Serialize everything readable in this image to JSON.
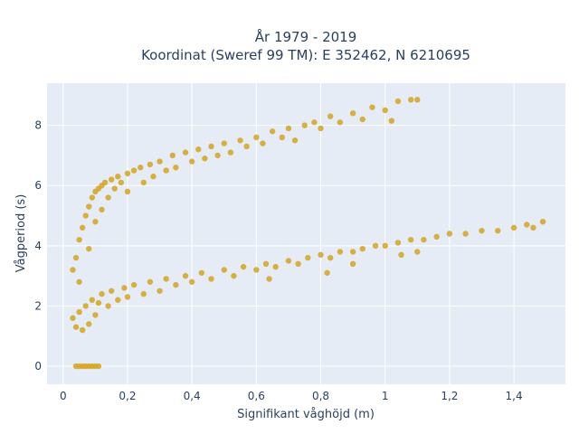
{
  "chart_data": {
    "type": "scatter",
    "title_line1": "År 1979 - 2019",
    "title_line2": "Koordinat (Sweref 99 TM): E 352462, N 6210695",
    "xlabel": "Signifikant våghöjd (m)",
    "ylabel": "Vågperiod (s)",
    "xlim": [
      -0.05,
      1.56
    ],
    "ylim": [
      -0.6,
      9.4
    ],
    "xticks": [
      0,
      0.2,
      0.4,
      0.6,
      0.8,
      1.0,
      1.2,
      1.4
    ],
    "xtick_labels": [
      "0",
      "0,2",
      "0,4",
      "0,6",
      "0,8",
      "1",
      "1,2",
      "1,4"
    ],
    "yticks": [
      0,
      2,
      4,
      6,
      8
    ],
    "ytick_labels": [
      "0",
      "2",
      "4",
      "6",
      "8"
    ],
    "grid": true,
    "legend": "none",
    "background_color": "#e5ecf6",
    "grid_color": "#ffffff",
    "marker_color": "#d4a520",
    "series": [
      {
        "description": "upper branch (swell)",
        "points": [
          [
            0.03,
            3.2
          ],
          [
            0.04,
            3.6
          ],
          [
            0.05,
            4.2
          ],
          [
            0.05,
            2.8
          ],
          [
            0.06,
            4.6
          ],
          [
            0.07,
            5.0
          ],
          [
            0.08,
            5.3
          ],
          [
            0.08,
            3.9
          ],
          [
            0.09,
            5.6
          ],
          [
            0.1,
            5.8
          ],
          [
            0.1,
            4.8
          ],
          [
            0.11,
            5.9
          ],
          [
            0.12,
            6.0
          ],
          [
            0.12,
            5.2
          ],
          [
            0.13,
            6.1
          ],
          [
            0.14,
            5.6
          ],
          [
            0.15,
            6.2
          ],
          [
            0.16,
            5.9
          ],
          [
            0.17,
            6.3
          ],
          [
            0.18,
            6.1
          ],
          [
            0.2,
            6.4
          ],
          [
            0.2,
            5.8
          ],
          [
            0.22,
            6.5
          ],
          [
            0.24,
            6.6
          ],
          [
            0.25,
            6.1
          ],
          [
            0.27,
            6.7
          ],
          [
            0.28,
            6.3
          ],
          [
            0.3,
            6.8
          ],
          [
            0.32,
            6.5
          ],
          [
            0.34,
            7.0
          ],
          [
            0.35,
            6.6
          ],
          [
            0.38,
            7.1
          ],
          [
            0.4,
            6.8
          ],
          [
            0.42,
            7.2
          ],
          [
            0.44,
            6.9
          ],
          [
            0.46,
            7.3
          ],
          [
            0.48,
            7.0
          ],
          [
            0.5,
            7.4
          ],
          [
            0.52,
            7.1
          ],
          [
            0.55,
            7.5
          ],
          [
            0.57,
            7.3
          ],
          [
            0.6,
            7.6
          ],
          [
            0.62,
            7.4
          ],
          [
            0.65,
            7.8
          ],
          [
            0.68,
            7.6
          ],
          [
            0.7,
            7.9
          ],
          [
            0.72,
            7.5
          ],
          [
            0.75,
            8.0
          ],
          [
            0.78,
            8.1
          ],
          [
            0.8,
            7.9
          ],
          [
            0.83,
            8.3
          ],
          [
            0.86,
            8.1
          ],
          [
            0.9,
            8.4
          ],
          [
            0.93,
            8.2
          ],
          [
            0.96,
            8.6
          ],
          [
            1.0,
            8.5
          ],
          [
            1.04,
            8.8
          ],
          [
            1.08,
            8.85
          ],
          [
            1.1,
            8.85
          ],
          [
            1.02,
            8.15
          ]
        ]
      },
      {
        "description": "lower branch (wind waves)",
        "points": [
          [
            0.03,
            1.6
          ],
          [
            0.04,
            1.3
          ],
          [
            0.05,
            1.8
          ],
          [
            0.06,
            1.2
          ],
          [
            0.07,
            2.0
          ],
          [
            0.08,
            1.4
          ],
          [
            0.09,
            2.2
          ],
          [
            0.1,
            1.7
          ],
          [
            0.11,
            2.1
          ],
          [
            0.12,
            2.4
          ],
          [
            0.14,
            2.0
          ],
          [
            0.15,
            2.5
          ],
          [
            0.17,
            2.2
          ],
          [
            0.19,
            2.6
          ],
          [
            0.2,
            2.3
          ],
          [
            0.22,
            2.7
          ],
          [
            0.25,
            2.4
          ],
          [
            0.27,
            2.8
          ],
          [
            0.3,
            2.5
          ],
          [
            0.32,
            2.9
          ],
          [
            0.35,
            2.7
          ],
          [
            0.38,
            3.0
          ],
          [
            0.4,
            2.8
          ],
          [
            0.43,
            3.1
          ],
          [
            0.46,
            2.9
          ],
          [
            0.5,
            3.2
          ],
          [
            0.53,
            3.0
          ],
          [
            0.56,
            3.3
          ],
          [
            0.6,
            3.2
          ],
          [
            0.63,
            3.4
          ],
          [
            0.66,
            3.3
          ],
          [
            0.7,
            3.5
          ],
          [
            0.73,
            3.4
          ],
          [
            0.76,
            3.6
          ],
          [
            0.8,
            3.7
          ],
          [
            0.83,
            3.6
          ],
          [
            0.86,
            3.8
          ],
          [
            0.9,
            3.8
          ],
          [
            0.93,
            3.9
          ],
          [
            0.97,
            4.0
          ],
          [
            1.0,
            4.0
          ],
          [
            1.04,
            4.1
          ],
          [
            1.08,
            4.2
          ],
          [
            1.12,
            4.2
          ],
          [
            1.16,
            4.3
          ],
          [
            1.2,
            4.4
          ],
          [
            1.25,
            4.4
          ],
          [
            1.3,
            4.5
          ],
          [
            1.35,
            4.5
          ],
          [
            1.4,
            4.6
          ],
          [
            1.44,
            4.7
          ],
          [
            1.49,
            4.8
          ],
          [
            1.46,
            4.6
          ],
          [
            0.82,
            3.1
          ],
          [
            0.9,
            3.4
          ],
          [
            1.05,
            3.7
          ],
          [
            1.1,
            3.8
          ],
          [
            0.64,
            2.9
          ]
        ]
      },
      {
        "description": "zero-period row",
        "points": [
          [
            0.04,
            0
          ],
          [
            0.05,
            0
          ],
          [
            0.06,
            0
          ],
          [
            0.07,
            0
          ],
          [
            0.08,
            0
          ],
          [
            0.09,
            0
          ],
          [
            0.1,
            0
          ],
          [
            0.11,
            0
          ]
        ]
      }
    ]
  }
}
